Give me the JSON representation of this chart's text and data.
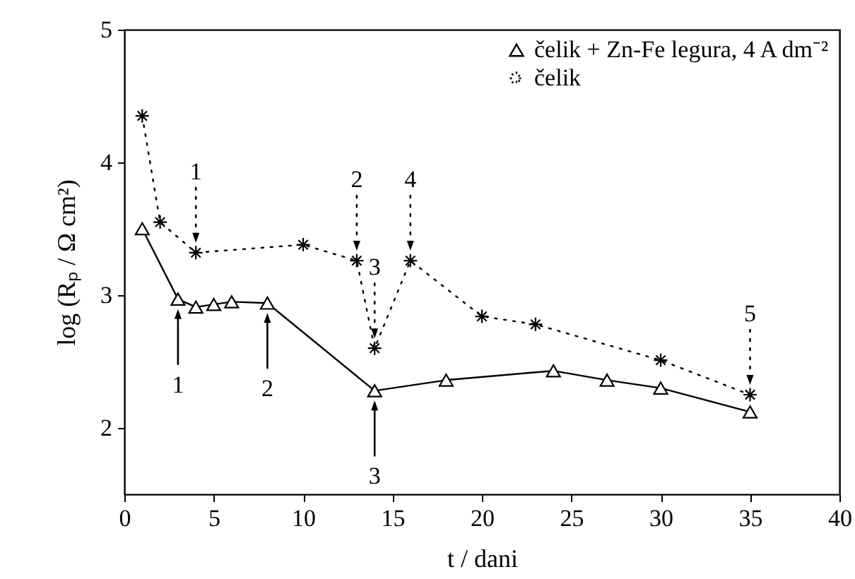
{
  "chart_data": {
    "type": "line",
    "xlabel": "t / dani",
    "ylabel": "log (Rₚ / Ω cm²)",
    "xlim": [
      0,
      40
    ],
    "xticks": [
      0,
      5,
      10,
      15,
      20,
      25,
      30,
      35,
      40
    ],
    "ylim": [
      1.5,
      5
    ],
    "yticks": [
      {
        "value": 2,
        "label": "2"
      },
      {
        "value": 3,
        "label": "3"
      },
      {
        "value": 4,
        "label": "4"
      },
      {
        "value": 5,
        "label": "5"
      }
    ],
    "legend": "top right",
    "series": [
      {
        "name": "čelik + Zn-Fe legura, 4 A dm⁻²",
        "color": "#000000",
        "marker": "triangle",
        "line_style": "solid",
        "x": [
          1,
          3,
          4,
          5,
          6,
          8,
          14,
          18,
          24,
          27,
          30,
          35
        ],
        "values": [
          3.5,
          2.97,
          2.91,
          2.93,
          2.95,
          2.94,
          2.28,
          2.36,
          2.43,
          2.36,
          2.3,
          2.12
        ]
      },
      {
        "name": "čelik",
        "color": "#000000",
        "marker": "cross",
        "line_style": "dotted",
        "x": [
          1,
          2,
          4,
          10,
          13,
          14,
          16,
          20,
          23,
          30,
          35
        ],
        "values": [
          4.35,
          3.55,
          3.32,
          3.38,
          3.26,
          2.6,
          3.26,
          2.84,
          2.78,
          2.51,
          2.25
        ]
      }
    ],
    "annotations": [
      {
        "text": "1",
        "x": 3,
        "y": 2.97
      },
      {
        "text": "2",
        "x": 8,
        "y": 2.94
      },
      {
        "text": "3",
        "x": 14,
        "y": 2.28
      },
      {
        "text": "1",
        "x": 4,
        "y": 3.32
      },
      {
        "text": "2",
        "x": 13,
        "y": 3.26
      },
      {
        "text": "3",
        "x": 14,
        "y": 2.6
      },
      {
        "text": "4",
        "x": 16,
        "y": 3.26
      },
      {
        "text": "5",
        "x": 35,
        "y": 2.25
      }
    ]
  }
}
